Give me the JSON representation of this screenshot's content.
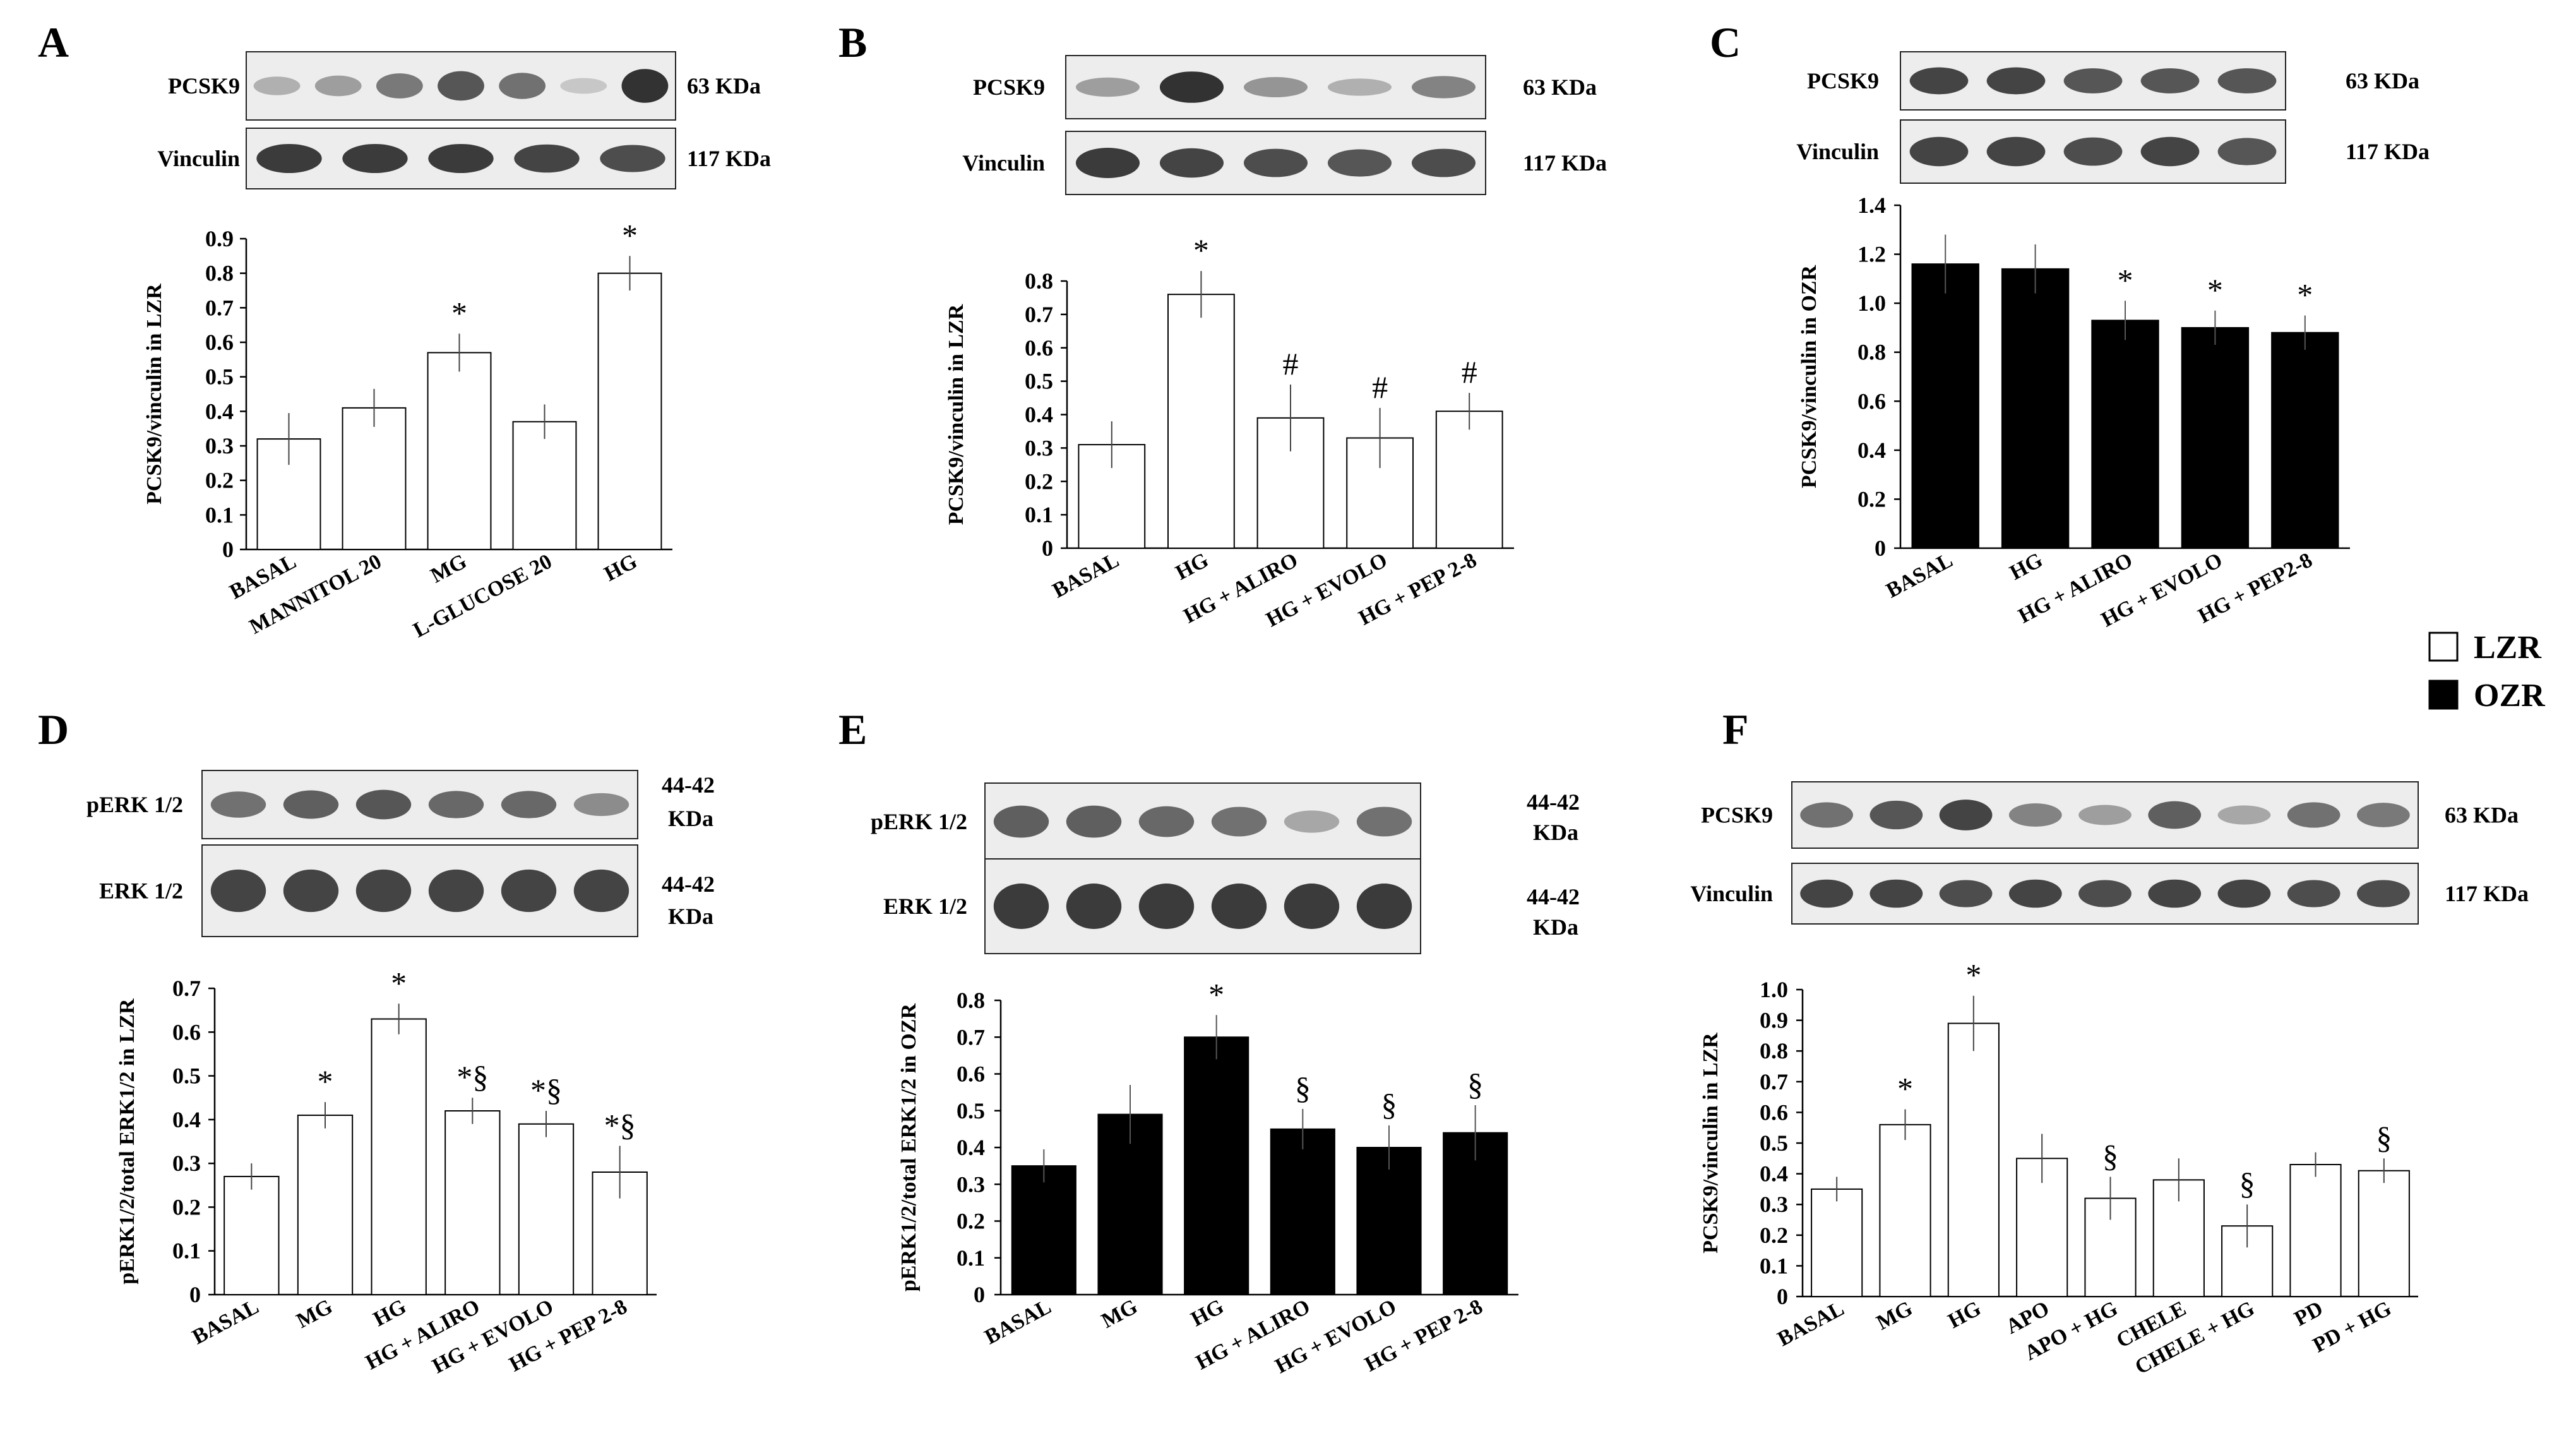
{
  "legend": {
    "items": [
      {
        "label": "LZR",
        "color": "#ffffff"
      },
      {
        "label": "OZR",
        "color": "#000000"
      }
    ]
  },
  "colors": {
    "lzr_fill": "#ffffff",
    "ozr_fill": "#000000",
    "axis": "#000000"
  },
  "panels": [
    {
      "letter": "A",
      "blots": [
        {
          "name": "PCSK9",
          "size": "63 KDa",
          "intensity": [
            0.25,
            0.35,
            0.55,
            0.75,
            0.6,
            0.12,
            0.95
          ]
        },
        {
          "name": "Vinculin",
          "size": "117 KDa",
          "intensity": [
            0.9,
            0.9,
            0.9,
            0.85,
            0.8
          ]
        }
      ]
    },
    {
      "letter": "B",
      "blots": [
        {
          "name": "PCSK9",
          "size": "63 KDa",
          "intensity": [
            0.35,
            0.95,
            0.4,
            0.25,
            0.5
          ]
        },
        {
          "name": "Vinculin",
          "size": "117 KDa",
          "intensity": [
            0.9,
            0.85,
            0.8,
            0.75,
            0.8
          ]
        }
      ]
    },
    {
      "letter": "C",
      "blots": [
        {
          "name": "PCSK9",
          "size": "63 KDa",
          "intensity": [
            0.85,
            0.85,
            0.75,
            0.75,
            0.75
          ]
        },
        {
          "name": "Vinculin",
          "size": "117 KDa",
          "intensity": [
            0.85,
            0.85,
            0.8,
            0.85,
            0.75
          ]
        }
      ]
    },
    {
      "letter": "D",
      "blots": [
        {
          "name": "pERK 1/2",
          "size_lines": [
            "44-42",
            "KDa"
          ],
          "intensity": [
            0.6,
            0.7,
            0.75,
            0.65,
            0.65,
            0.45
          ]
        },
        {
          "name": "ERK 1/2",
          "size_lines": [
            "44-42",
            "KDa"
          ],
          "intensity": [
            0.85,
            0.85,
            0.85,
            0.85,
            0.85,
            0.85
          ]
        }
      ]
    },
    {
      "letter": "E",
      "blots": [
        {
          "name": "pERK 1/2",
          "size_lines": [
            "44-42",
            "KDa"
          ],
          "intensity": [
            0.7,
            0.7,
            0.65,
            0.6,
            0.3,
            0.6
          ]
        },
        {
          "name": "ERK 1/2",
          "size_lines": [
            "44-42",
            "KDa"
          ],
          "intensity": [
            0.9,
            0.9,
            0.9,
            0.9,
            0.9,
            0.9
          ]
        }
      ]
    },
    {
      "letter": "F",
      "blots": [
        {
          "name": "PCSK9",
          "size": "63 KDa",
          "intensity": [
            0.6,
            0.75,
            0.85,
            0.5,
            0.35,
            0.7,
            0.3,
            0.6,
            0.55
          ]
        },
        {
          "name": "Vinculin",
          "size": "117 KDa",
          "intensity": [
            0.85,
            0.85,
            0.8,
            0.85,
            0.8,
            0.85,
            0.85,
            0.8,
            0.8
          ]
        }
      ]
    }
  ],
  "chart_data": [
    {
      "panel": "A",
      "type": "bar",
      "fill": "white",
      "ylabel": "PCSK9/vinculin in LZR",
      "ylim": [
        0,
        0.9
      ],
      "yticks": [
        "0",
        "0.1",
        "0.2",
        "0.3",
        "0.4",
        "0.5",
        "0.6",
        "0.7",
        "0.8",
        "0.9"
      ],
      "categories": [
        "BASAL",
        "MANNITOL 20",
        "MG",
        "L-GLUCOSE 20",
        "HG"
      ],
      "values": [
        0.32,
        0.41,
        0.57,
        0.37,
        0.8
      ],
      "errors": [
        0.075,
        0.055,
        0.055,
        0.05,
        0.05
      ],
      "marks": [
        "",
        "",
        "*",
        "",
        "*"
      ]
    },
    {
      "panel": "B",
      "type": "bar",
      "fill": "white",
      "ylabel": "PCSK9/vinculin in LZR",
      "ylim": [
        0,
        0.8
      ],
      "yticks": [
        "0",
        "0.1",
        "0.2",
        "0.3",
        "0.4",
        "0.5",
        "0.6",
        "0.7",
        "0.8"
      ],
      "categories": [
        "BASAL",
        "HG",
        "HG + ALIRO",
        "HG + EVOLO",
        "HG + PEP 2-8"
      ],
      "values": [
        0.31,
        0.76,
        0.39,
        0.33,
        0.41
      ],
      "errors": [
        0.07,
        0.07,
        0.1,
        0.09,
        0.055
      ],
      "marks": [
        "",
        "*",
        "#",
        "#",
        "#"
      ]
    },
    {
      "panel": "C",
      "type": "bar",
      "fill": "black",
      "ylabel": "PCSK9/vinculin in OZR",
      "ylim": [
        0,
        1.4
      ],
      "yticks": [
        "0",
        "0.2",
        "0.4",
        "0.6",
        "0.8",
        "1.0",
        "1.2",
        "1.4"
      ],
      "categories": [
        "BASAL",
        "HG",
        "HG + ALIRO",
        "HG + EVOLO",
        "HG + PEP2-8"
      ],
      "values": [
        1.16,
        1.14,
        0.93,
        0.9,
        0.88
      ],
      "errors": [
        0.12,
        0.1,
        0.08,
        0.07,
        0.07
      ],
      "marks": [
        "",
        "",
        "*",
        "*",
        "*"
      ]
    },
    {
      "panel": "D",
      "type": "bar",
      "fill": "white",
      "ylabel": "pERK1/2/total ERK1/2 in LZR",
      "ylim": [
        0,
        0.7
      ],
      "yticks": [
        "0",
        "0.1",
        "0.2",
        "0.3",
        "0.4",
        "0.5",
        "0.6",
        "0.7"
      ],
      "categories": [
        "BASAL",
        "MG",
        "HG",
        "HG + ALIRO",
        "HG + EVOLO",
        "HG + PEP 2-8"
      ],
      "values": [
        0.27,
        0.41,
        0.63,
        0.42,
        0.39,
        0.28
      ],
      "errors": [
        0.03,
        0.03,
        0.035,
        0.03,
        0.03,
        0.06
      ],
      "marks": [
        "",
        "*",
        "*",
        "*§",
        "*§",
        "*§"
      ]
    },
    {
      "panel": "E",
      "type": "bar",
      "fill": "black",
      "ylabel": "pERK1/2/total ERK1/2 in OZR",
      "ylim": [
        0,
        0.8
      ],
      "yticks": [
        "0",
        "0.1",
        "0.2",
        "0.3",
        "0.4",
        "0.5",
        "0.6",
        "0.7",
        "0.8"
      ],
      "categories": [
        "BASAL",
        "MG",
        "HG",
        "HG + ALIRO",
        "HG + EVOLO",
        "HG + PEP 2-8"
      ],
      "values": [
        0.35,
        0.49,
        0.7,
        0.45,
        0.4,
        0.44
      ],
      "errors": [
        0.045,
        0.08,
        0.06,
        0.055,
        0.06,
        0.075
      ],
      "marks": [
        "",
        "",
        "*",
        "§",
        "§",
        "§"
      ]
    },
    {
      "panel": "F",
      "type": "bar",
      "fill": "white",
      "ylabel": "PCSK9/vinculin in LZR",
      "ylim": [
        0,
        1.0
      ],
      "yticks": [
        "0",
        "0.1",
        "0.2",
        "0.3",
        "0.4",
        "0.5",
        "0.6",
        "0.7",
        "0.8",
        "0.9",
        "1.0"
      ],
      "categories": [
        "BASAL",
        "MG",
        "HG",
        "APO",
        "APO + HG",
        "CHELE",
        "CHELE + HG",
        "PD",
        "PD + HG"
      ],
      "values": [
        0.35,
        0.56,
        0.89,
        0.45,
        0.32,
        0.38,
        0.23,
        0.43,
        0.41
      ],
      "errors": [
        0.04,
        0.05,
        0.09,
        0.08,
        0.07,
        0.07,
        0.07,
        0.04,
        0.04
      ],
      "marks": [
        "",
        "*",
        "*",
        "",
        "§",
        "",
        "§",
        "",
        "§"
      ]
    }
  ]
}
